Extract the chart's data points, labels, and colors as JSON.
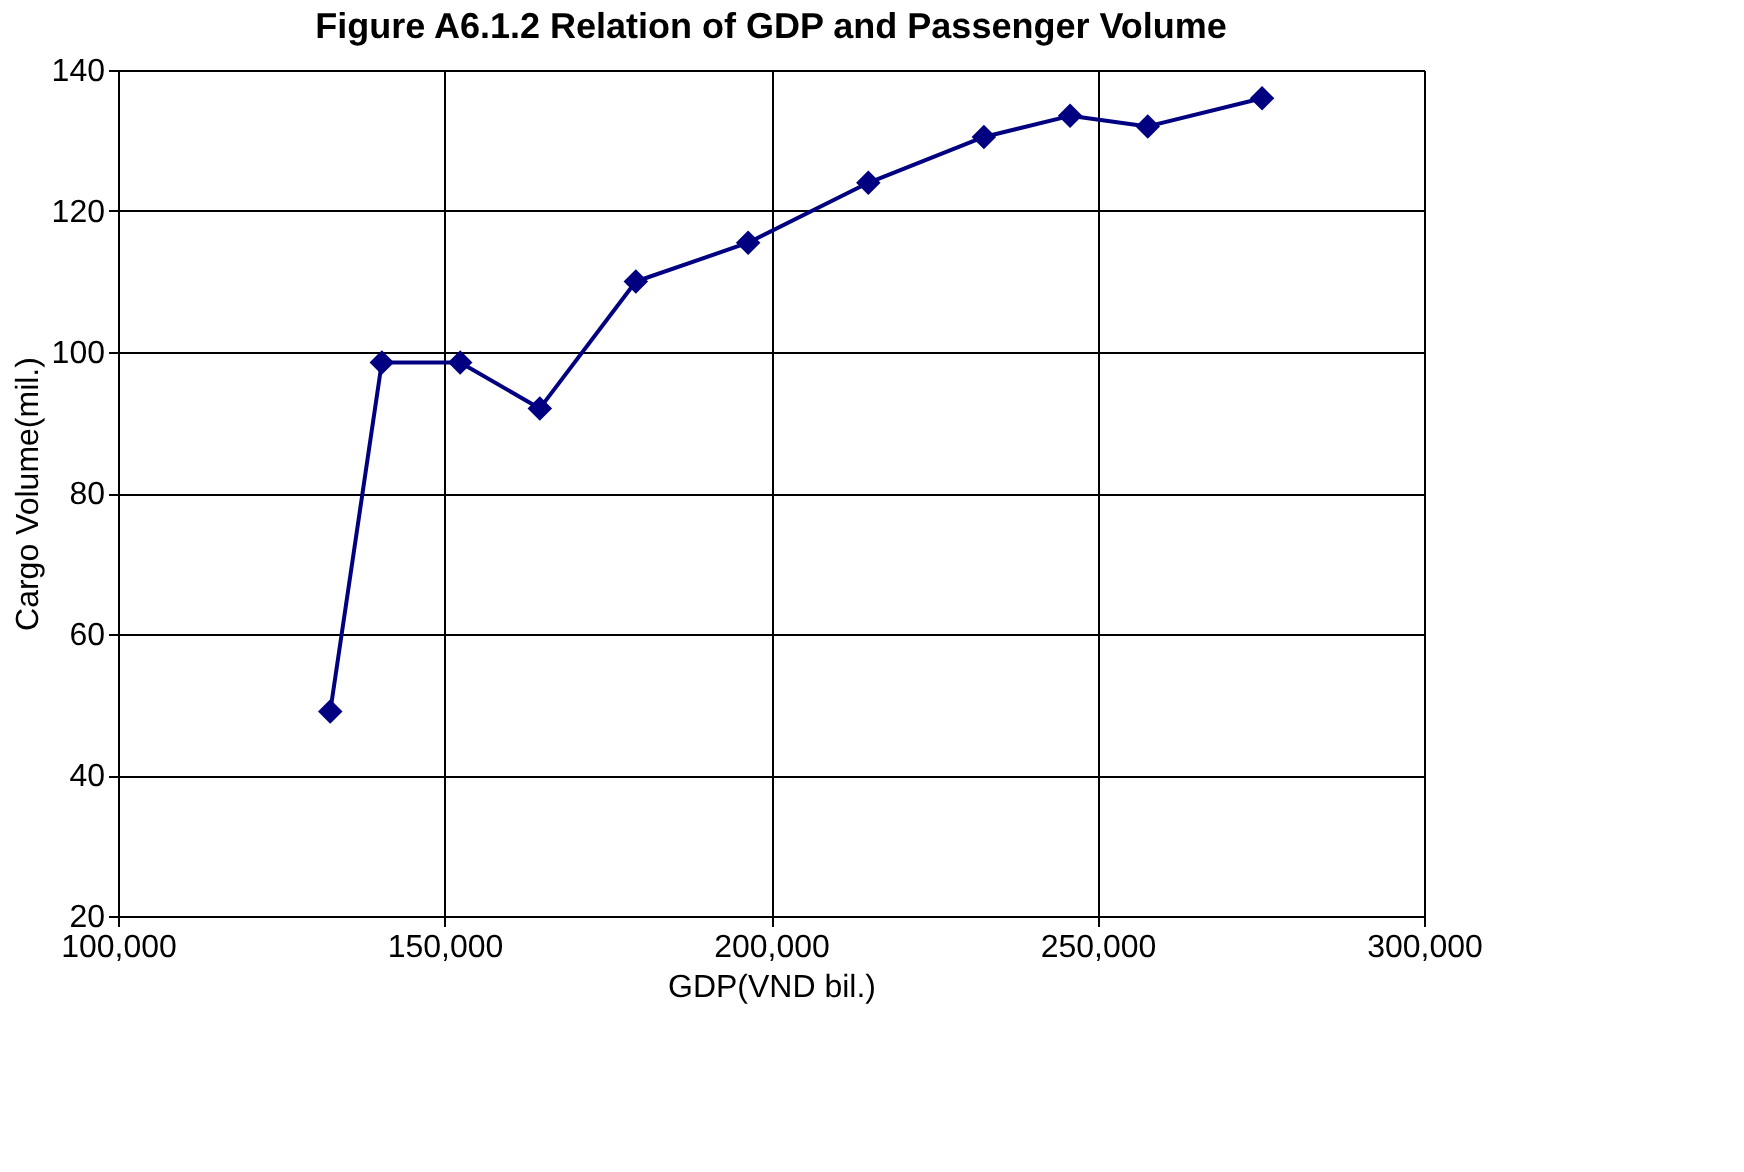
{
  "chart_data": {
    "type": "line",
    "title": "Figure A6.1.2 Relation of GDP and Passenger Volume",
    "xlabel": "GDP(VND bil.)",
    "ylabel": "Cargo Volume(mil.)",
    "x": [
      132500,
      140400,
      152400,
      164600,
      179300,
      196500,
      214900,
      232600,
      245800,
      257700,
      275200
    ],
    "series": [
      {
        "color": "#000080",
        "values": [
          49,
          98.5,
          98.5,
          92,
          110,
          115.5,
          124,
          130.5,
          133.5,
          132,
          136
        ]
      }
    ],
    "xlim": [
      100000,
      300000
    ],
    "xticks": [
      {
        "value": 100000,
        "label": "100,000"
      },
      {
        "value": 150000,
        "label": "150,000"
      },
      {
        "value": 200000,
        "label": "200,000"
      },
      {
        "value": 250000,
        "label": "250,000"
      },
      {
        "value": 300000,
        "label": "300,000"
      }
    ],
    "ylim": [
      20,
      140
    ],
    "yticks": [
      20,
      40,
      60,
      80,
      100,
      120,
      140
    ],
    "grid": true,
    "marker": "diamond",
    "line_style": "solid"
  }
}
